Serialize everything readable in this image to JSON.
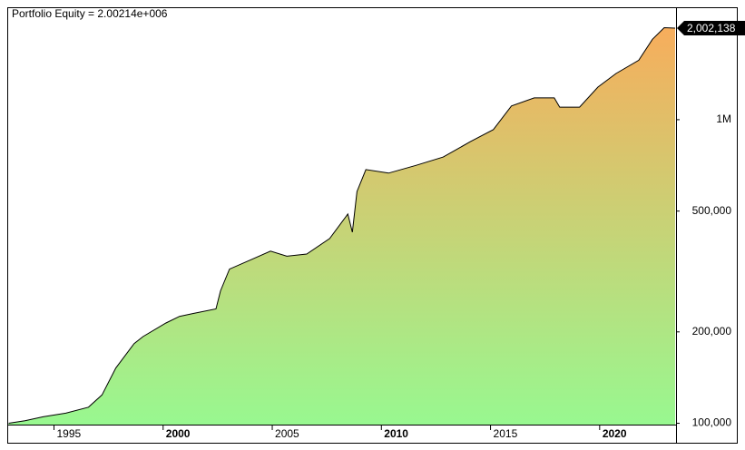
{
  "chart_data": {
    "type": "area",
    "title": "Portfolio Equity = 2.00214e+006",
    "x": [
      1992.92,
      1993.67,
      1994.5,
      1995.54,
      1996.58,
      1997.2,
      1997.83,
      1998.67,
      1999.08,
      2000.13,
      2000.75,
      2001.38,
      2002.42,
      2002.63,
      2003.04,
      2004.08,
      2004.92,
      2005.67,
      2006.58,
      2007.63,
      2008.46,
      2008.67,
      2008.88,
      2009.29,
      2010.33,
      2011.58,
      2012.83,
      2014.08,
      2015.13,
      2015.96,
      2017.0,
      2017.92,
      2018.17,
      2019.08,
      2019.92,
      2020.75,
      2021.79,
      2022.42,
      2022.96,
      2023.46
    ],
    "values": [
      100000,
      102000,
      105000,
      108000,
      113000,
      124000,
      152000,
      183000,
      193000,
      214000,
      225000,
      230000,
      238000,
      273000,
      322000,
      347000,
      369000,
      355000,
      361000,
      406000,
      489000,
      426000,
      580000,
      685000,
      667000,
      707000,
      753000,
      847000,
      928000,
      1110000,
      1180000,
      1180000,
      1100000,
      1100000,
      1280000,
      1420000,
      1570000,
      1840000,
      2010000,
      2002138
    ],
    "last_value_label": "2,002,138",
    "xlim": [
      1992.9,
      2023.5
    ],
    "xticks": [
      1995,
      2000,
      2005,
      2010,
      2015,
      2020
    ],
    "ylim": [
      99000,
      2330000
    ],
    "yticks": [
      {
        "value": 100000,
        "label": "100,000"
      },
      {
        "value": 200000,
        "label": "200,000"
      },
      {
        "value": 500000,
        "label": "500,000"
      },
      {
        "value": 1000000,
        "label": "1M"
      }
    ],
    "log_y": true,
    "line_color": "#000000",
    "fill_gradient": [
      "#f7ad5c",
      "#98f890"
    ]
  }
}
